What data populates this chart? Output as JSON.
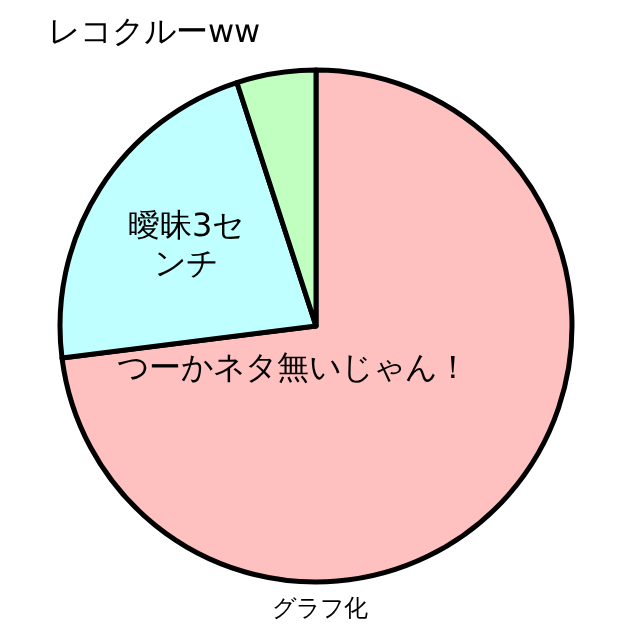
{
  "chart_data": {
    "type": "pie",
    "categories": [
      "つーかネタ無いじゃん！",
      "曖昧3センチ",
      "レコクルーww"
    ],
    "values": [
      73,
      22,
      5
    ],
    "colors": [
      "#ffc0c0",
      "#c0ffff",
      "#c0ffc0"
    ],
    "annotations": [
      "グラフ化"
    ]
  }
}
